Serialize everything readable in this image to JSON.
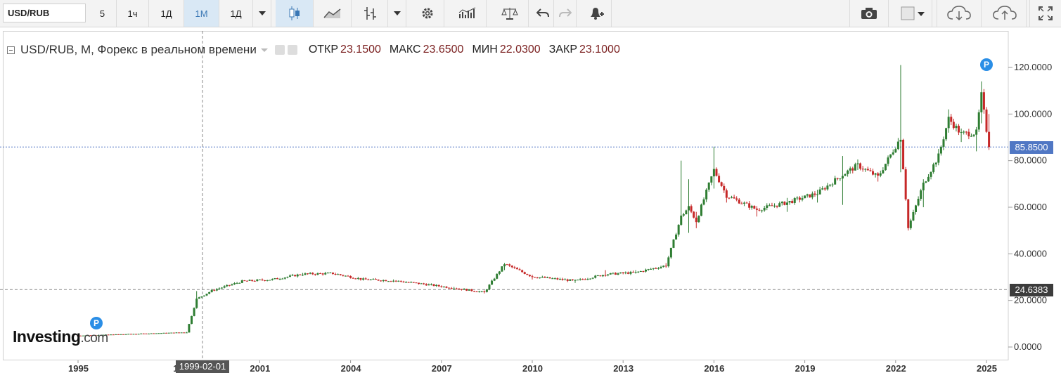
{
  "toolbar": {
    "symbol": "USD/RUB",
    "intervals": [
      "5",
      "1ч",
      "1Д",
      "1М",
      "1Д"
    ],
    "active_interval_index": 3,
    "icons": [
      "candles-icon",
      "line-chart-icon",
      "bar-chart-icon",
      "settings-icon",
      "indicators-icon",
      "compare-icon",
      "undo-icon",
      "redo-icon",
      "alert-icon",
      "camera-icon",
      "color-picker-icon",
      "cloud-download-icon",
      "cloud-upload-icon",
      "fullscreen-icon"
    ]
  },
  "legend": {
    "title": "USD/RUB, M, Форекс в реальном времени",
    "open_label": "ОТКР",
    "open": "23.1500",
    "high_label": "МАКС",
    "high": "23.6500",
    "low_label": "МИН",
    "low": "22.0300",
    "close_label": "ЗАКР",
    "close": "23.1000"
  },
  "axis": {
    "y_ticks": [
      "120.0000",
      "100.0000",
      "80.0000",
      "60.0000",
      "40.0000",
      "20.0000",
      "0.0000"
    ],
    "x_ticks": [
      "1995",
      "199",
      "2001",
      "2004",
      "2007",
      "2010",
      "2013",
      "2016",
      "2019",
      "2022",
      "2025"
    ]
  },
  "last_price": "85.8500",
  "crosshair_price": "24.6383",
  "crosshair_date": "1999-02-01",
  "tag_letter": "P",
  "logo": {
    "main": "Investing",
    "suffix": ".com"
  },
  "colors": {
    "up": "#2e7d32",
    "down": "#c62828",
    "accent": "#2a8ee6",
    "last_line": "#5077c4"
  },
  "chart_data": {
    "type": "line",
    "title": "USD/RUB, M, Форекс в реальном времени",
    "ylim": [
      0,
      125
    ],
    "x": [
      "1995-01",
      "1998-08",
      "1998-12",
      "1999-06",
      "2000-06",
      "2001-06",
      "2002-06",
      "2003-06",
      "2004-06",
      "2005-06",
      "2006-06",
      "2007-06",
      "2008-06",
      "2009-02",
      "2010-01",
      "2011-06",
      "2012-06",
      "2013-06",
      "2014-06",
      "2014-12",
      "2015-03",
      "2015-06",
      "2016-01",
      "2016-06",
      "2017-06",
      "2018-06",
      "2019-06",
      "2020-04",
      "2020-10",
      "2021-06",
      "2022-03",
      "2022-06",
      "2022-12",
      "2023-06",
      "2023-10",
      "2024-03",
      "2024-09",
      "2024-11",
      "2025-02"
    ],
    "close": [
      4.9,
      6.3,
      20.6,
      24.2,
      28.2,
      29.0,
      31.3,
      31.6,
      29.0,
      28.5,
      27.0,
      25.3,
      23.5,
      35.7,
      30.2,
      28.4,
      31.2,
      32.0,
      35.0,
      56.0,
      60.0,
      54.0,
      76.0,
      65.0,
      59.0,
      62.0,
      66.0,
      74.0,
      78.0,
      73.0,
      90.0,
      51.0,
      70.0,
      82.0,
      98.0,
      91.5,
      92.0,
      108.0,
      85.85
    ],
    "high": [
      5.0,
      6.5,
      24.0,
      25.0,
      28.5,
      29.2,
      31.8,
      32.0,
      29.5,
      29.0,
      27.5,
      25.8,
      24.0,
      36.0,
      31.0,
      29.0,
      33.0,
      33.0,
      36.0,
      80.0,
      72.0,
      58.0,
      86.0,
      68.0,
      60.5,
      64.0,
      67.5,
      82.0,
      80.5,
      74.0,
      121.0,
      58.0,
      72.0,
      85.0,
      102.0,
      93.0,
      94.0,
      114.0,
      100.0
    ],
    "low": [
      4.8,
      6.2,
      17.0,
      23.5,
      28.0,
      28.5,
      30.5,
      31.0,
      28.5,
      28.0,
      26.8,
      25.0,
      23.0,
      33.0,
      29.0,
      27.5,
      30.5,
      31.5,
      34.0,
      52.0,
      49.0,
      51.0,
      68.0,
      62.0,
      56.0,
      58.0,
      62.0,
      61.0,
      76.0,
      71.0,
      75.0,
      50.0,
      60.0,
      78.0,
      92.0,
      88.0,
      84.0,
      96.0,
      85.85
    ]
  }
}
